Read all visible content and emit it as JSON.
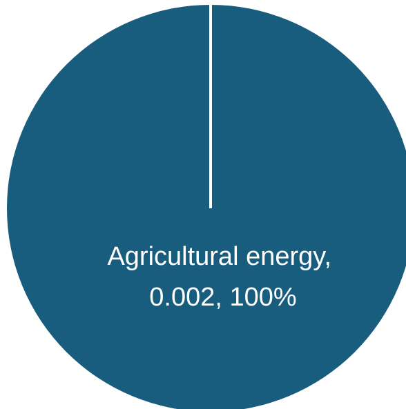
{
  "chart_data": {
    "type": "pie",
    "slices": [
      {
        "name": "Agricultural energy",
        "value": 0.002,
        "percent": "100%",
        "color": "#185d7e"
      }
    ],
    "labels": {
      "line1": "Agricultural energy,",
      "line2": "0.002, 100%"
    },
    "border_color": "#ffffff",
    "legend": "none"
  }
}
